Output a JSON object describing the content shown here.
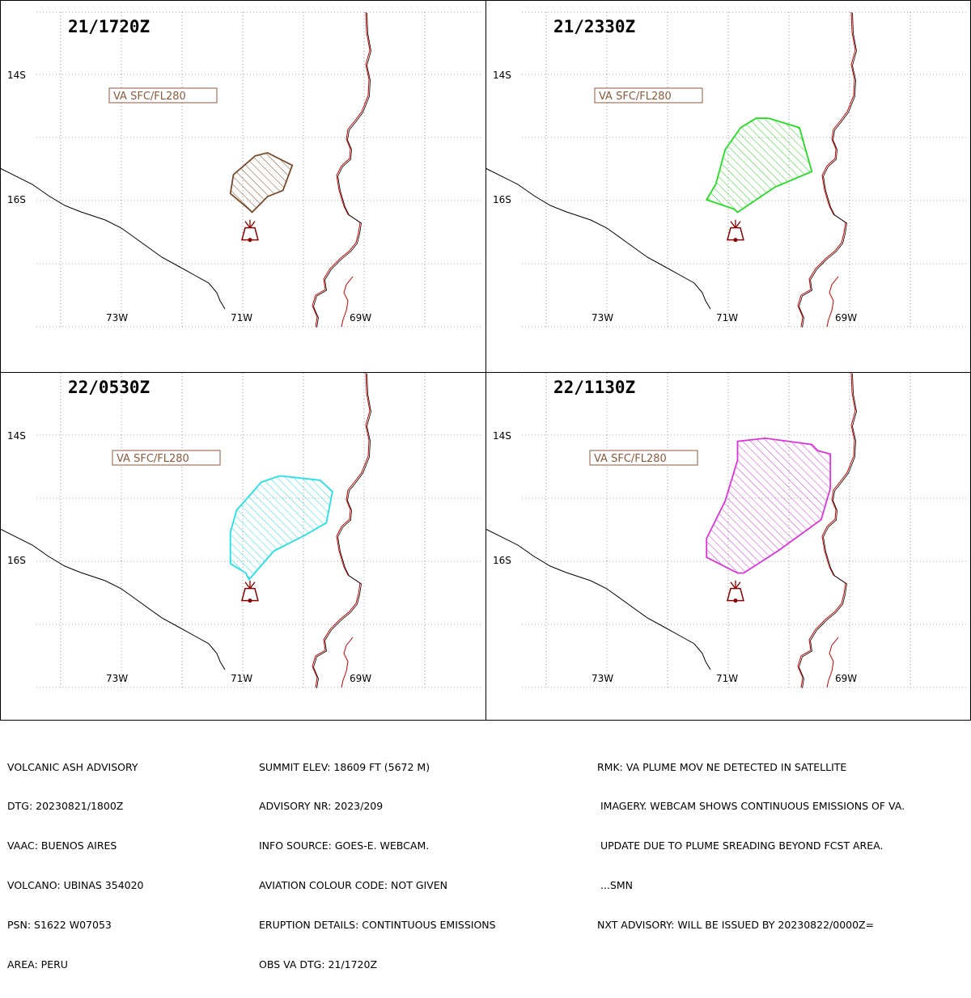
{
  "panels": [
    {
      "title": "21/1720Z",
      "level_label": "VA SFC/FL280",
      "plume_color": "#7a4a2a",
      "plume_outline": [
        [
          70.9,
          16.15
        ],
        [
          71.2,
          15.9
        ],
        [
          71.15,
          15.6
        ],
        [
          70.8,
          15.3
        ],
        [
          70.6,
          15.25
        ],
        [
          70.2,
          15.45
        ],
        [
          70.35,
          15.85
        ],
        [
          70.6,
          15.95
        ],
        [
          70.85,
          16.2
        ]
      ]
    },
    {
      "title": "21/2330Z",
      "level_label": "VA SFC/FL280",
      "plume_color": "#22dd22",
      "plume_outline": [
        [
          70.9,
          16.15
        ],
        [
          71.35,
          16.0
        ],
        [
          71.2,
          15.75
        ],
        [
          71.05,
          15.2
        ],
        [
          70.8,
          14.85
        ],
        [
          70.55,
          14.7
        ],
        [
          70.35,
          14.7
        ],
        [
          69.85,
          14.85
        ],
        [
          69.75,
          15.2
        ],
        [
          69.65,
          15.55
        ],
        [
          70.25,
          15.8
        ],
        [
          70.85,
          16.2
        ]
      ]
    },
    {
      "title": "22/0530Z",
      "level_label": "VA SFC/FL280",
      "plume_color": "#22e0e8",
      "plume_outline": [
        [
          70.95,
          16.2
        ],
        [
          71.2,
          16.05
        ],
        [
          71.2,
          15.55
        ],
        [
          71.1,
          15.2
        ],
        [
          70.7,
          14.75
        ],
        [
          70.4,
          14.65
        ],
        [
          69.75,
          14.72
        ],
        [
          69.55,
          14.9
        ],
        [
          69.65,
          15.4
        ],
        [
          70.0,
          15.6
        ],
        [
          70.5,
          15.85
        ],
        [
          70.85,
          16.25
        ],
        [
          70.9,
          16.3
        ]
      ]
    },
    {
      "title": "22/1130Z",
      "level_label": "VA SFC/FL280",
      "plume_color": "#dd33dd",
      "plume_outline": [
        [
          70.85,
          16.2
        ],
        [
          71.35,
          15.95
        ],
        [
          71.35,
          15.65
        ],
        [
          71.05,
          15.05
        ],
        [
          70.85,
          14.4
        ],
        [
          70.85,
          14.1
        ],
        [
          70.4,
          14.05
        ],
        [
          69.65,
          14.15
        ],
        [
          69.55,
          14.25
        ],
        [
          69.35,
          14.3
        ],
        [
          69.35,
          14.85
        ],
        [
          69.5,
          15.35
        ],
        [
          70.2,
          15.85
        ],
        [
          70.75,
          16.2
        ]
      ]
    }
  ],
  "axes": {
    "lat_labels": [
      "14S",
      "16S"
    ],
    "lon_labels": [
      "73W",
      "71W",
      "69W"
    ]
  },
  "volcano": {
    "name": "UBINAS",
    "lat": -16.37,
    "lon": -70.883
  },
  "advisory": {
    "col1": [
      "VOLCANIC ASH ADVISORY",
      "DTG: 20230821/1800Z",
      "VAAC: BUENOS AIRES",
      "VOLCANO: UBINAS 354020",
      "PSN: S1622 W07053",
      "AREA: PERU"
    ],
    "col2": [
      "SUMMIT ELEV: 18609 FT (5672 M)",
      "ADVISORY NR: 2023/209",
      "INFO SOURCE: GOES-E. WEBCAM.",
      "AVIATION COLOUR CODE: NOT GIVEN",
      "ERUPTION DETAILS: CONTINTUOUS EMISSIONS",
      "OBS VA DTG: 21/1720Z"
    ],
    "col3": [
      "RMK: VA PLUME MOV NE DETECTED IN SATELLITE",
      " IMAGERY. WEBCAM SHOWS CONTINUOUS EMISSIONS OF VA.",
      " UPDATE DUE TO PLUME SREADING BEYOND FCST AREA.",
      " ...SMN",
      "NXT ADVISORY: WILL BE ISSUED BY 20230822/0000Z="
    ]
  }
}
